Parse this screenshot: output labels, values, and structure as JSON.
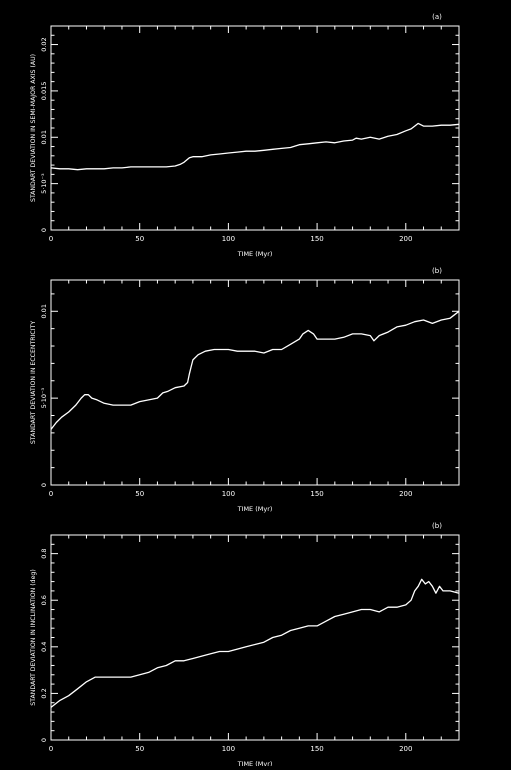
{
  "chart_data": [
    {
      "type": "line",
      "panel_label": "(a)",
      "xlabel": "TIME (Myr)",
      "ylabel": "STANDART DEVIATION IN SEMI-MAJOR AXIS (AU)",
      "xlim": [
        0,
        230
      ],
      "ylim": [
        0,
        0.022
      ],
      "x_major_ticks": [
        0,
        50,
        100,
        150,
        200
      ],
      "x_tick_labels": [
        "0",
        "50",
        "100",
        "150",
        "200"
      ],
      "y_major_ticks": [
        0,
        0.005,
        0.01,
        0.015,
        0.02
      ],
      "y_tick_labels": [
        "0",
        "5·10⁻³",
        "0.01",
        "0.015",
        "0.02"
      ],
      "series": [
        {
          "x": [
            0,
            5,
            10,
            15,
            20,
            25,
            30,
            35,
            40,
            45,
            50,
            55,
            60,
            65,
            70,
            73,
            75,
            78,
            80,
            85,
            90,
            95,
            100,
            105,
            110,
            115,
            120,
            125,
            130,
            135,
            140,
            145,
            150,
            155,
            160,
            165,
            170,
            172,
            175,
            180,
            185,
            190,
            195,
            200,
            203,
            205,
            207,
            210,
            215,
            220,
            225,
            230
          ],
          "y": [
            0.0067,
            0.0066,
            0.0066,
            0.0065,
            0.0066,
            0.0066,
            0.0066,
            0.0067,
            0.0067,
            0.0068,
            0.0068,
            0.0068,
            0.0068,
            0.0068,
            0.0069,
            0.0071,
            0.0073,
            0.0078,
            0.0079,
            0.0079,
            0.0081,
            0.0082,
            0.0083,
            0.0084,
            0.0085,
            0.0085,
            0.0086,
            0.0087,
            0.0088,
            0.0089,
            0.0092,
            0.0093,
            0.0094,
            0.0095,
            0.0094,
            0.0096,
            0.0097,
            0.0099,
            0.0098,
            0.01,
            0.0098,
            0.0101,
            0.0103,
            0.0107,
            0.0109,
            0.0112,
            0.0115,
            0.0112,
            0.0112,
            0.0113,
            0.0113,
            0.0114
          ]
        }
      ]
    },
    {
      "type": "line",
      "panel_label": "(b)",
      "xlabel": "TIME (Myr)",
      "ylabel": "STANDART DEVIATION IN ECCENTRICITY",
      "xlim": [
        0,
        230
      ],
      "ylim": [
        0,
        0.0118
      ],
      "x_major_ticks": [
        0,
        50,
        100,
        150,
        200
      ],
      "x_tick_labels": [
        "0",
        "50",
        "100",
        "150",
        "200"
      ],
      "y_major_ticks": [
        0,
        0.005,
        0.01
      ],
      "y_tick_labels": [
        "0",
        "5·10⁻³",
        "0.01"
      ],
      "series": [
        {
          "x": [
            0,
            3,
            6,
            10,
            14,
            17,
            19,
            21,
            23,
            26,
            30,
            35,
            40,
            45,
            50,
            55,
            60,
            63,
            66,
            70,
            75,
            77,
            78,
            79,
            80,
            83,
            87,
            92,
            97,
            100,
            105,
            110,
            115,
            120,
            125,
            130,
            135,
            140,
            142,
            145,
            148,
            150,
            155,
            160,
            165,
            170,
            175,
            180,
            182,
            185,
            190,
            195,
            200,
            205,
            210,
            215,
            220,
            225,
            230
          ],
          "y": [
            0.0032,
            0.0036,
            0.0039,
            0.0042,
            0.0046,
            0.005,
            0.0052,
            0.0052,
            0.005,
            0.0049,
            0.0047,
            0.0046,
            0.0046,
            0.0046,
            0.0048,
            0.0049,
            0.005,
            0.0053,
            0.0054,
            0.0056,
            0.0057,
            0.0059,
            0.0064,
            0.0068,
            0.0072,
            0.0075,
            0.0077,
            0.0078,
            0.0078,
            0.0078,
            0.0077,
            0.0077,
            0.0077,
            0.0076,
            0.0078,
            0.0078,
            0.0081,
            0.0084,
            0.0087,
            0.0089,
            0.0087,
            0.0084,
            0.0084,
            0.0084,
            0.0085,
            0.0087,
            0.0087,
            0.0086,
            0.0083,
            0.0086,
            0.0088,
            0.0091,
            0.0092,
            0.0094,
            0.0095,
            0.0093,
            0.0095,
            0.0096,
            0.01
          ]
        }
      ]
    },
    {
      "type": "line",
      "panel_label": "(b)",
      "xlabel": "TIME (Myr)",
      "ylabel": "STANDART DEVIATION IN INCLINATION (deg)",
      "xlim": [
        0,
        230
      ],
      "ylim": [
        0,
        0.88
      ],
      "x_major_ticks": [
        0,
        50,
        100,
        150,
        200
      ],
      "x_tick_labels": [
        "0",
        "50",
        "100",
        "150",
        "200"
      ],
      "y_major_ticks": [
        0,
        0.2,
        0.4,
        0.6,
        0.8
      ],
      "y_tick_labels": [
        "0",
        "0.2",
        "0.4",
        "0.6",
        "0.8"
      ],
      "series": [
        {
          "x": [
            0,
            5,
            10,
            15,
            20,
            25,
            30,
            35,
            40,
            45,
            50,
            55,
            60,
            65,
            70,
            75,
            80,
            85,
            90,
            95,
            100,
            105,
            110,
            115,
            120,
            125,
            130,
            135,
            140,
            145,
            150,
            155,
            160,
            165,
            170,
            175,
            180,
            185,
            190,
            195,
            200,
            203,
            205,
            207,
            209,
            211,
            213,
            215,
            217,
            219,
            221,
            225,
            230
          ],
          "y": [
            0.14,
            0.17,
            0.19,
            0.22,
            0.25,
            0.27,
            0.27,
            0.27,
            0.27,
            0.27,
            0.28,
            0.29,
            0.31,
            0.32,
            0.34,
            0.34,
            0.35,
            0.36,
            0.37,
            0.38,
            0.38,
            0.39,
            0.4,
            0.41,
            0.42,
            0.44,
            0.45,
            0.47,
            0.48,
            0.49,
            0.49,
            0.51,
            0.53,
            0.54,
            0.55,
            0.56,
            0.56,
            0.55,
            0.57,
            0.57,
            0.58,
            0.6,
            0.64,
            0.66,
            0.69,
            0.67,
            0.68,
            0.66,
            0.63,
            0.66,
            0.64,
            0.64,
            0.63
          ]
        }
      ]
    }
  ]
}
